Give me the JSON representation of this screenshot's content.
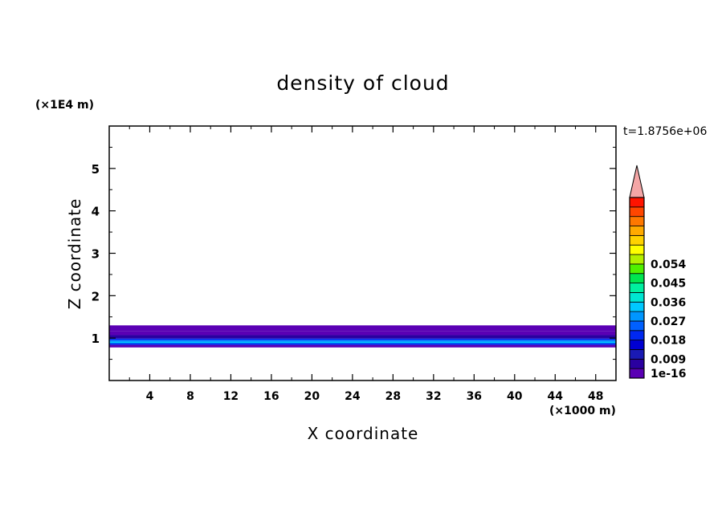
{
  "chart_data": {
    "type": "heatmap",
    "title": "density of cloud",
    "xlabel": "X coordinate",
    "ylabel": "Z coordinate",
    "x_unit": "(×1000 m)",
    "y_unit": "(×1E4 m)",
    "time_label": "t=1.8756e+06",
    "xlim": [
      0,
      50
    ],
    "ylim": [
      0,
      6
    ],
    "x_ticks": [
      4,
      8,
      12,
      16,
      20,
      24,
      28,
      32,
      36,
      40,
      44,
      48
    ],
    "y_ticks": [
      1,
      2,
      3,
      4,
      5
    ],
    "colorbar": {
      "min": 1e-16,
      "step": 0.0045,
      "labels": [
        "1e-16",
        "0.009",
        "0.018",
        "0.027",
        "0.036",
        "0.045",
        "0.054"
      ],
      "levels": [
        0,
        0.009,
        0.018,
        0.027,
        0.036,
        0.045,
        0.054
      ],
      "colors": [
        "#5a00b4",
        "#2a00a0",
        "#1a1ab4",
        "#0000d2",
        "#0028f0",
        "#0060ff",
        "#0096ff",
        "#00c8ff",
        "#00e6d2",
        "#00f0a0",
        "#00e650",
        "#50f000",
        "#b4f000",
        "#ffff00",
        "#ffd200",
        "#ffaa00",
        "#ff7800",
        "#ff4600",
        "#ff1400"
      ],
      "extend_color": "#f4a6a6"
    },
    "layers": [
      {
        "zmin": 0.78,
        "zmax": 0.84,
        "value": 0.004
      },
      {
        "zmin": 0.84,
        "zmax": 0.88,
        "value": 0.018
      },
      {
        "zmin": 0.88,
        "zmax": 0.91,
        "value": 0.032
      },
      {
        "zmin": 0.91,
        "zmax": 0.95,
        "value": 0.027
      },
      {
        "zmin": 0.95,
        "zmax": 0.99,
        "value": 0.018
      },
      {
        "zmin": 0.99,
        "zmax": 1.07,
        "value": 0.008
      },
      {
        "zmin": 1.07,
        "zmax": 1.17,
        "value": 0.003
      },
      {
        "zmin": 1.17,
        "zmax": 1.3,
        "value": 0.0005
      }
    ]
  }
}
